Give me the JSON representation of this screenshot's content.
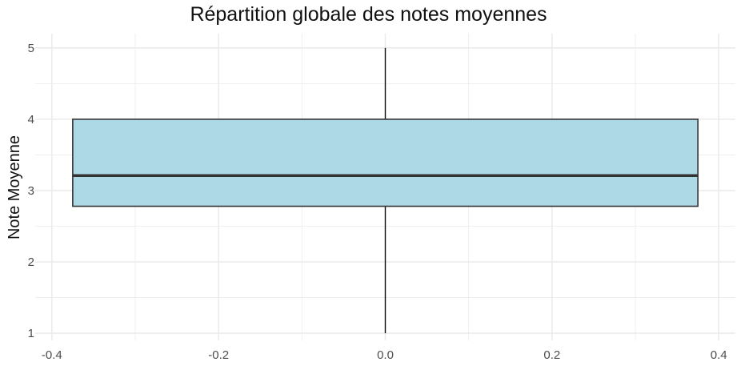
{
  "chart_data": {
    "type": "box",
    "title": "Répartition globale des notes moyennes",
    "xlabel": "",
    "ylabel": "Note Moyenne",
    "xlim": [
      -0.42,
      0.42
    ],
    "ylim": [
      0.9,
      5.2
    ],
    "x_ticks": [
      -0.4,
      -0.2,
      0.0,
      0.2,
      0.4
    ],
    "x_tick_labels": [
      "-0.4",
      "-0.2",
      "0.0",
      "0.2",
      "0.4"
    ],
    "y_ticks": [
      1,
      2,
      3,
      4,
      5
    ],
    "y_tick_labels": [
      "1",
      "2",
      "3",
      "4",
      "5"
    ],
    "grid": true,
    "box": {
      "x_center": 0.0,
      "x_half_width": 0.375,
      "min": 1.0,
      "q1": 2.78,
      "median": 3.21,
      "q3": 4.0,
      "max": 5.0
    },
    "colors": {
      "box_fill": "#add8e6",
      "box_stroke": "#333333",
      "grid": "#ebebeb",
      "text": "#4d4d4d"
    }
  }
}
